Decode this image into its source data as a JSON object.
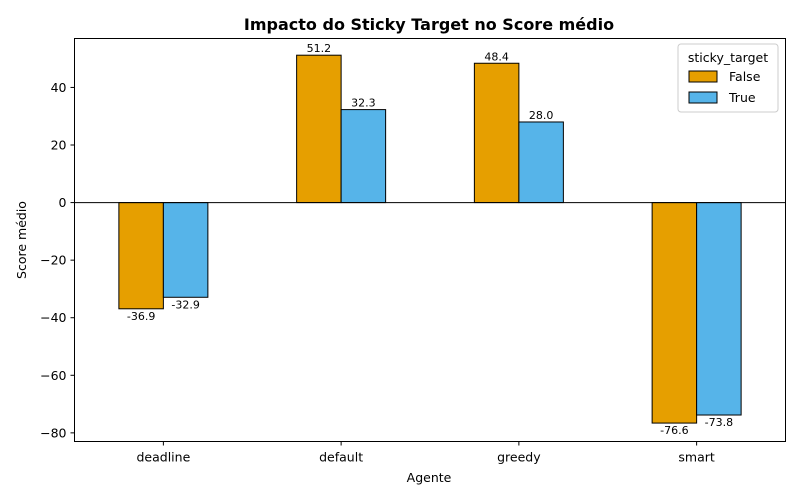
{
  "chart_data": {
    "type": "bar",
    "title": "Impacto do Sticky Target no Score médio",
    "xlabel": "Agente",
    "ylabel": "Score médio",
    "categories": [
      "deadline",
      "default",
      "greedy",
      "smart"
    ],
    "series": [
      {
        "name": "False",
        "values": [
          -36.9,
          51.2,
          48.4,
          -76.6
        ],
        "color": "#E69F00"
      },
      {
        "name": "True",
        "values": [
          -32.9,
          32.3,
          28.0,
          -73.8
        ],
        "color": "#56B4E9"
      }
    ],
    "data_labels": [
      [
        "-36.9",
        "51.2",
        "48.4",
        "-76.6"
      ],
      [
        "-32.9",
        "32.3",
        "28.0",
        "-73.8"
      ]
    ],
    "ylim": [
      -83.0,
      57.0
    ],
    "yticks": [
      -80,
      -60,
      -40,
      -20,
      0,
      20,
      40
    ],
    "ytick_labels": [
      "−80",
      "−60",
      "−40",
      "−20",
      "0",
      "20",
      "40"
    ],
    "legend": {
      "title": "sticky_target",
      "placement": "top-right"
    },
    "grid": false,
    "zero_line": true
  }
}
